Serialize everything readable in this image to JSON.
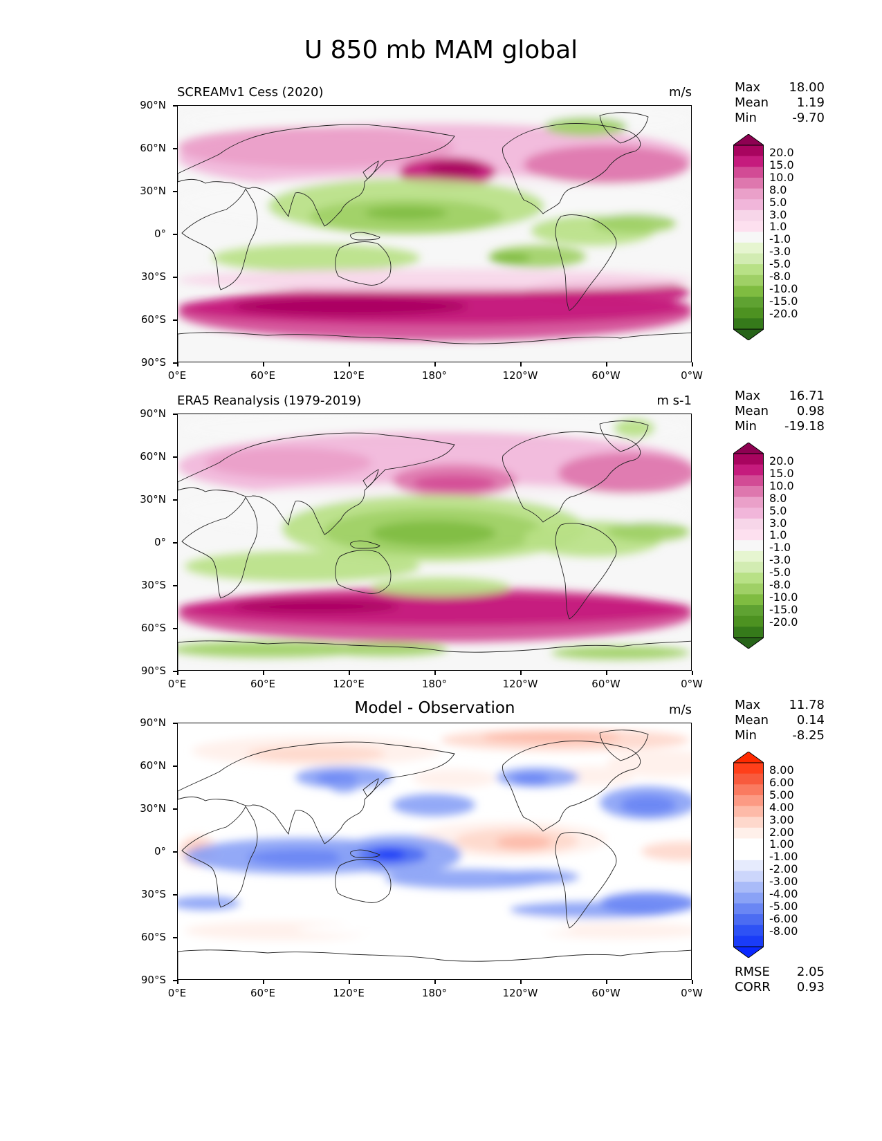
{
  "figure_title": "U 850 mb MAM global",
  "axes": {
    "lat_labels": [
      "90°N",
      "60°N",
      "30°N",
      "0°",
      "30°S",
      "60°S",
      "90°S"
    ],
    "lon_labels": [
      "0°E",
      "60°E",
      "120°E",
      "180°",
      "120°W",
      "60°W",
      "0°W"
    ]
  },
  "panels": [
    {
      "title": "SCREAMv1 Cess (2020)",
      "units": "m/s",
      "stats": {
        "max_label": "Max",
        "max": "18.00",
        "mean_label": "Mean",
        "mean": "1.19",
        "min_label": "Min",
        "min": "-9.70"
      },
      "colorbar": {
        "labels": [
          "20.0",
          "15.0",
          "10.0",
          "8.0",
          "5.0",
          "3.0",
          "1.0",
          "-1.0",
          "-3.0",
          "-5.0",
          "-8.0",
          "-10.0",
          "-15.0",
          "-20.0"
        ],
        "colors": [
          "#8e0152",
          "#a8045f",
          "#c51b7d",
          "#d24b95",
          "#de77ae",
          "#eaa0c9",
          "#f1b6da",
          "#f7d6e9",
          "#fde0ef",
          "#f7f7f7",
          "#e6f5d0",
          "#d2ecb2",
          "#b8e186",
          "#9fd066",
          "#7fbc41",
          "#5fa232",
          "#4d9221",
          "#357a1a",
          "#276419"
        ]
      }
    },
    {
      "title": "ERA5 Reanalysis (1979-2019)",
      "units": "m s-1",
      "stats": {
        "max_label": "Max",
        "max": "16.71",
        "mean_label": "Mean",
        "mean": "0.98",
        "min_label": "Min",
        "min": "-19.18"
      },
      "colorbar": {
        "labels": [
          "20.0",
          "15.0",
          "10.0",
          "8.0",
          "5.0",
          "3.0",
          "1.0",
          "-1.0",
          "-3.0",
          "-5.0",
          "-8.0",
          "-10.0",
          "-15.0",
          "-20.0"
        ],
        "colors": [
          "#8e0152",
          "#a8045f",
          "#c51b7d",
          "#d24b95",
          "#de77ae",
          "#eaa0c9",
          "#f1b6da",
          "#f7d6e9",
          "#fde0ef",
          "#f7f7f7",
          "#e6f5d0",
          "#d2ecb2",
          "#b8e186",
          "#9fd066",
          "#7fbc41",
          "#5fa232",
          "#4d9221",
          "#357a1a",
          "#276419"
        ]
      }
    },
    {
      "title": "Model - Observation",
      "units": "m/s",
      "stats": {
        "max_label": "Max",
        "max": "11.78",
        "mean_label": "Mean",
        "mean": "0.14",
        "min_label": "Min",
        "min": "-8.25"
      },
      "metrics": {
        "rmse_label": "RMSE",
        "rmse": "2.05",
        "corr_label": "CORR",
        "corr": "0.93"
      },
      "colorbar": {
        "labels": [
          "8.00",
          "6.00",
          "5.00",
          "4.00",
          "3.00",
          "2.00",
          "1.00",
          "-1.00",
          "-2.00",
          "-3.00",
          "-4.00",
          "-5.00",
          "-6.00",
          "-8.00"
        ],
        "colors": [
          "#ff2a00",
          "#ff3f1a",
          "#f85a3d",
          "#fa7a60",
          "#fc9a84",
          "#fdbaa8",
          "#fed8cc",
          "#fff0ea",
          "#ffffff",
          "#ffffff",
          "#e6ebfd",
          "#ccd6fb",
          "#a9bbf8",
          "#8aa2f6",
          "#6a86f4",
          "#4c6cf2",
          "#2e52f5",
          "#1a3cf8",
          "#0a28ff"
        ]
      }
    }
  ]
}
